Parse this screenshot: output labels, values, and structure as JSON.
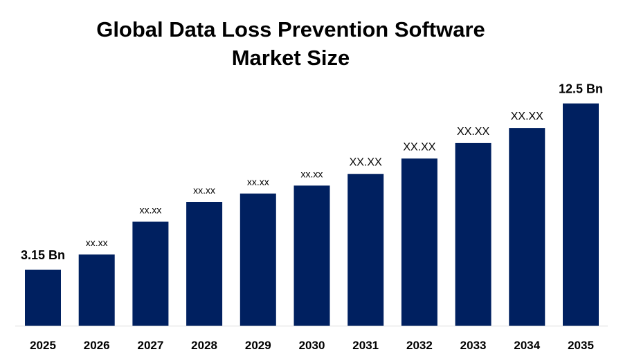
{
  "chart_data": {
    "type": "bar",
    "title": "Global Data Loss Prevention Software Market Size",
    "title_lines": [
      "Global Data Loss Prevention Software",
      "Market Size"
    ],
    "categories": [
      "2025",
      "2026",
      "2027",
      "2028",
      "2029",
      "2030",
      "2031",
      "2032",
      "2033",
      "2034",
      "2035"
    ],
    "values": [
      3.15,
      4.0,
      5.85,
      6.96,
      7.43,
      7.88,
      8.53,
      9.4,
      10.27,
      11.12,
      12.5
    ],
    "data_labels": [
      "3.15 Bn",
      "xx.xx",
      "xx.xx",
      "xx.xx",
      "xx.xx",
      "xx.xx",
      "XX.XX",
      "XX.XX",
      "XX.XX",
      "XX.XX",
      "12.5 Bn"
    ],
    "xlabel": "",
    "ylabel": "",
    "ylim": [
      0,
      14
    ],
    "grid": false,
    "legend": "none",
    "bar_color": "#002060",
    "axis_color": "#d9d9d9"
  }
}
